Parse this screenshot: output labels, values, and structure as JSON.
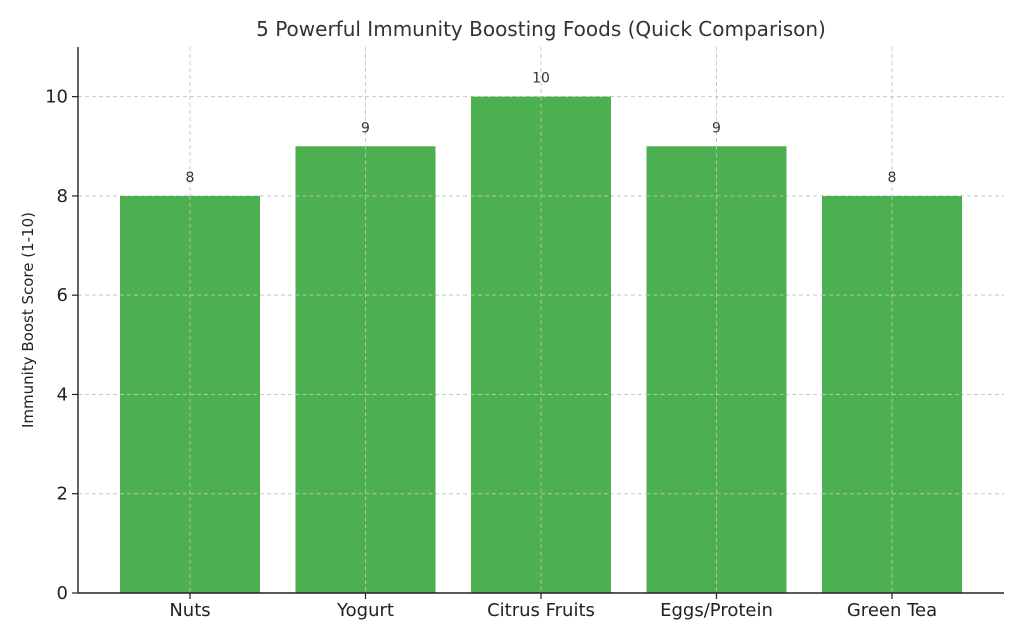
{
  "chart_data": {
    "type": "bar",
    "title": "5 Powerful Immunity Boosting Foods (Quick Comparison)",
    "xlabel": "",
    "ylabel": "Immunity Boost Score (1-10)",
    "categories": [
      "Nuts",
      "Yogurt",
      "Citrus Fruits",
      "Eggs/Protein",
      "Green Tea"
    ],
    "values": [
      8,
      9,
      10,
      9,
      8
    ],
    "value_labels": [
      "8",
      "9",
      "10",
      "9",
      "8"
    ],
    "ylim": [
      0,
      11
    ],
    "yticks": [
      0,
      2,
      4,
      6,
      8,
      10
    ],
    "ytick_labels": [
      "0",
      "2",
      "4",
      "6",
      "8",
      "10"
    ],
    "grid": true,
    "bar_color": "#4caf50",
    "legend": "none"
  }
}
